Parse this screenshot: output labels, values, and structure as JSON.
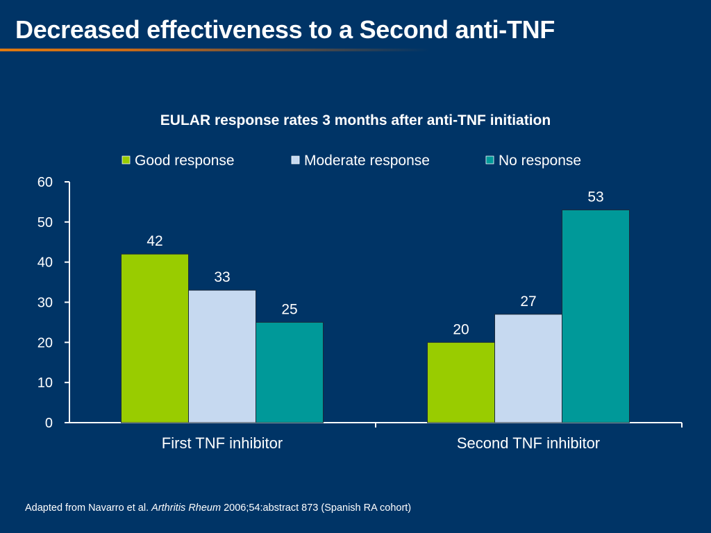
{
  "slide": {
    "title": "Decreased effectiveness to a Second anti-TNF"
  },
  "chart_data": {
    "type": "bar",
    "title": "EULAR response rates 3 months after anti-TNF initiation",
    "categories": [
      "First TNF inhibitor",
      "Second TNF inhibitor"
    ],
    "series": [
      {
        "name": "Good response",
        "values": [
          42,
          20
        ],
        "color": "#99cc00"
      },
      {
        "name": "Moderate response",
        "values": [
          33,
          27
        ],
        "color": "#c6d9f0"
      },
      {
        "name": "No response",
        "values": [
          25,
          53
        ],
        "color": "#009999"
      }
    ],
    "ylim": [
      0,
      60
    ],
    "yticks": [
      0,
      10,
      20,
      30,
      40,
      50,
      60
    ],
    "xlabel": "",
    "ylabel": "",
    "legend_position": "top",
    "grid": false,
    "data_labels": true
  },
  "footnote": {
    "prefix": "Adapted from Navarro et al.",
    "journal": "Arthritis Rheum",
    "suffix": "2006;54:abstract 873 (Spanish RA cohort)"
  }
}
